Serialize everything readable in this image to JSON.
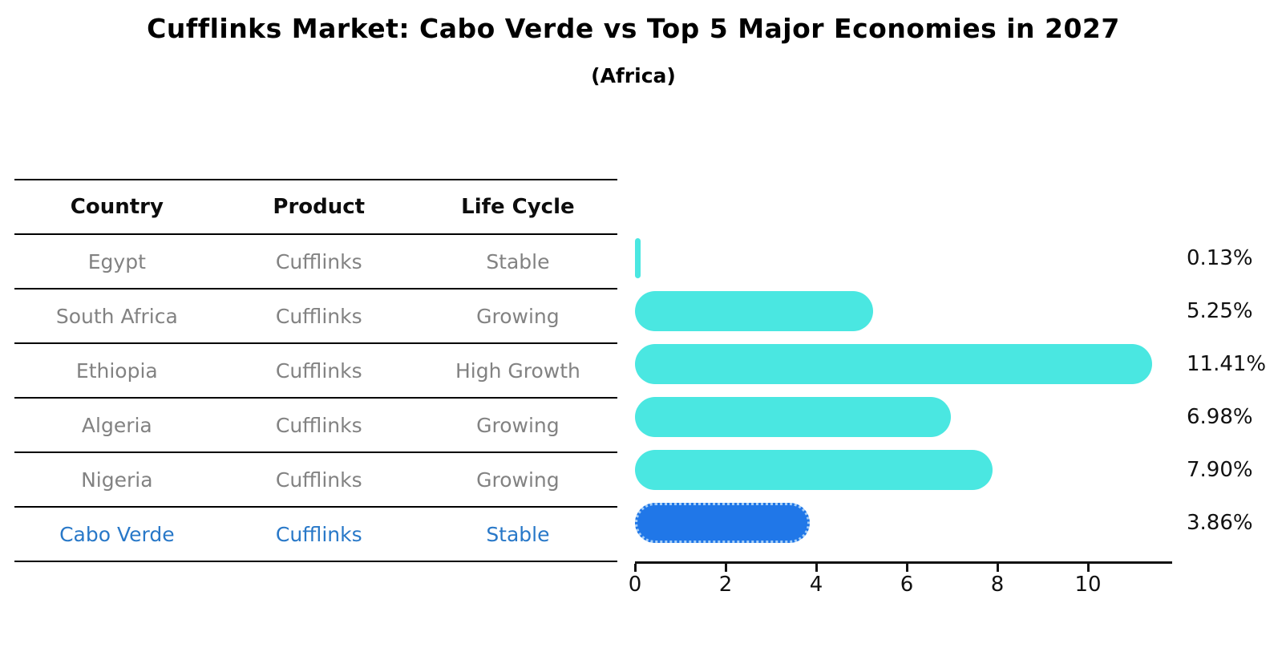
{
  "title": "Cufflinks Market: Cabo Verde vs Top 5 Major Economies in 2027",
  "subtitle": "(Africa)",
  "table": {
    "columns": [
      "Country",
      "Product",
      "Life Cycle"
    ],
    "rows": [
      {
        "country": "Egypt",
        "product": "Cufflinks",
        "life_cycle": "Stable",
        "highlight": false
      },
      {
        "country": "South Africa",
        "product": "Cufflinks",
        "life_cycle": "Growing",
        "highlight": false
      },
      {
        "country": "Ethiopia",
        "product": "Cufflinks",
        "life_cycle": "High Growth",
        "highlight": false
      },
      {
        "country": "Algeria",
        "product": "Cufflinks",
        "life_cycle": "Growing",
        "highlight": false
      },
      {
        "country": "Nigeria",
        "product": "Cufflinks",
        "life_cycle": "Growing",
        "highlight": false
      },
      {
        "country": "Cabo Verde",
        "product": "Cufflinks",
        "life_cycle": "Stable",
        "highlight": true
      }
    ]
  },
  "chart_data": {
    "type": "bar",
    "orientation": "horizontal",
    "title": "Cufflinks Market: Cabo Verde vs Top 5 Major Economies in 2027",
    "subtitle": "(Africa)",
    "categories": [
      "Egypt",
      "South Africa",
      "Ethiopia",
      "Algeria",
      "Nigeria",
      "Cabo Verde"
    ],
    "values": [
      0.13,
      5.25,
      11.41,
      6.98,
      7.9,
      3.86
    ],
    "value_labels": [
      "0.13%",
      "5.25%",
      "11.41%",
      "6.98%",
      "7.90%",
      "3.86%"
    ],
    "xlim": [
      0,
      12
    ],
    "x_ticks": [
      "0",
      "2",
      "4",
      "6",
      "8",
      "10"
    ],
    "x_tick_values": [
      0,
      2,
      4,
      6,
      8,
      10
    ],
    "grid": false,
    "legend": "none",
    "bar_color": "#4ae7e1",
    "highlight_bar_color": "#2077e8",
    "highlight_index": 5,
    "highlight_text_color": "#2878c8"
  },
  "colors": {
    "bar_cyan": "#4ae7e1",
    "bar_blue": "#2077e8",
    "row_text_gray": "#828282",
    "highlight_text_blue": "#2878c8",
    "axis_black": "#111111"
  }
}
